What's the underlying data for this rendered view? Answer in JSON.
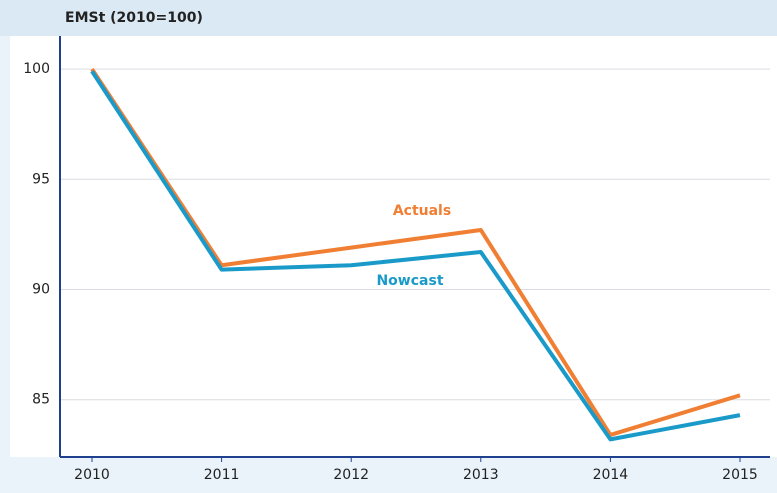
{
  "chart_data": {
    "type": "line",
    "title": "EMSt (2010=100)",
    "categories": [
      "2010",
      "2011",
      "2012",
      "2013",
      "2014",
      "2015"
    ],
    "series": [
      {
        "name": "Actuals",
        "color": "#f07f34",
        "values": [
          100,
          91.1,
          91.9,
          92.7,
          83.4,
          85.2
        ]
      },
      {
        "name": "Nowcast",
        "color": "#1a9ac9",
        "values": [
          99.9,
          90.9,
          91.1,
          91.7,
          83.2,
          84.3
        ]
      }
    ],
    "ylim": [
      82.4,
      101.5
    ],
    "yticks": [
      85,
      90,
      95,
      100
    ],
    "grid": true
  }
}
